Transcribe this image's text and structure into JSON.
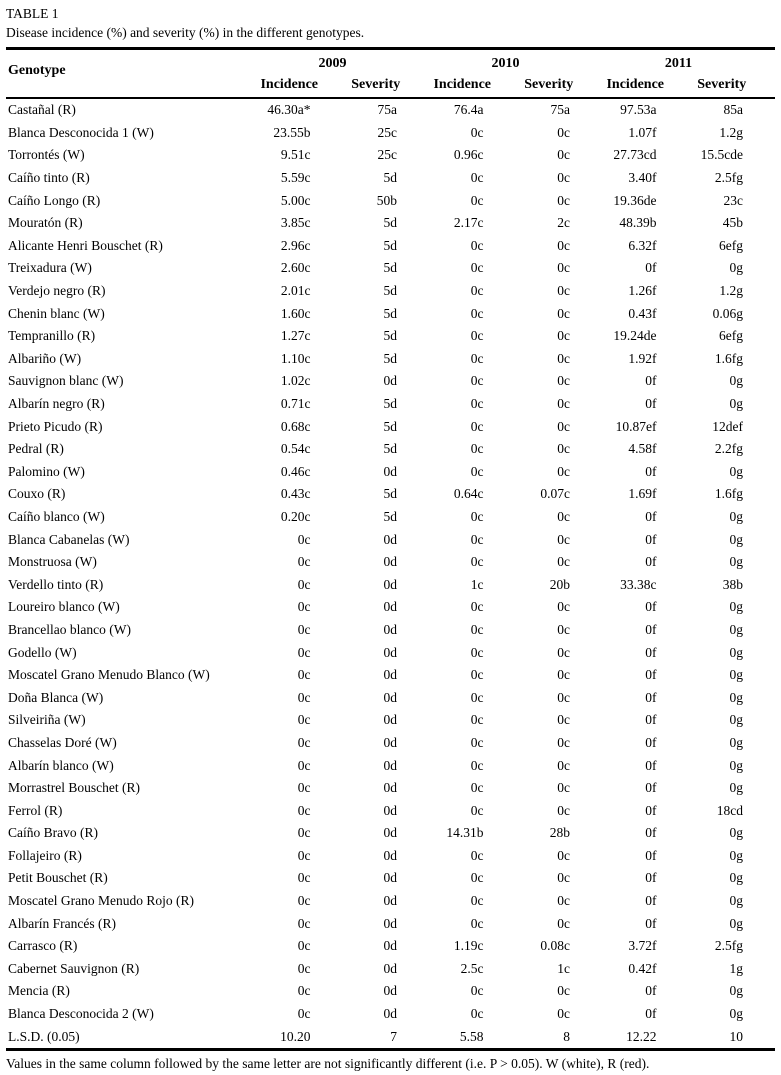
{
  "page": {
    "label": "TABLE 1",
    "title": "Disease incidence (%) and severity (%) in the different genotypes.",
    "footnote": "Values in the same column followed by the same letter are not significantly different (i.e. P > 0.05). W (white), R (red)."
  },
  "table": {
    "genotype_header": "Genotype",
    "year_groups": [
      "2009",
      "2010",
      "2011"
    ],
    "sub_headers": [
      "Incidence",
      "Severity"
    ],
    "rows": [
      {
        "genotype": "Castañal (R)",
        "values": [
          "46.30a*",
          "75a",
          "76.4a",
          "75a",
          "97.53a",
          "85a"
        ]
      },
      {
        "genotype": "Blanca Desconocida 1 (W)",
        "values": [
          "23.55b",
          "25c",
          "0c",
          "0c",
          "1.07f",
          "1.2g"
        ]
      },
      {
        "genotype": "Torrontés (W)",
        "values": [
          "9.51c",
          "25c",
          "0.96c",
          "0c",
          "27.73cd",
          "15.5cde"
        ]
      },
      {
        "genotype": "Caíño tinto (R)",
        "values": [
          "5.59c",
          "5d",
          "0c",
          "0c",
          "3.40f",
          "2.5fg"
        ]
      },
      {
        "genotype": "Caíño Longo (R)",
        "values": [
          "5.00c",
          "50b",
          "0c",
          "0c",
          "19.36de",
          "23c"
        ]
      },
      {
        "genotype": "Mouratón (R)",
        "values": [
          "3.85c",
          "5d",
          "2.17c",
          "2c",
          "48.39b",
          "45b"
        ]
      },
      {
        "genotype": "Alicante Henri Bouschet (R)",
        "values": [
          "2.96c",
          "5d",
          "0c",
          "0c",
          "6.32f",
          "6efg"
        ]
      },
      {
        "genotype": "Treixadura (W)",
        "values": [
          "2.60c",
          "5d",
          "0c",
          "0c",
          "0f",
          "0g"
        ]
      },
      {
        "genotype": "Verdejo negro (R)",
        "values": [
          "2.01c",
          "5d",
          "0c",
          "0c",
          "1.26f",
          "1.2g"
        ]
      },
      {
        "genotype": "Chenin blanc (W)",
        "values": [
          "1.60c",
          "5d",
          "0c",
          "0c",
          "0.43f",
          "0.06g"
        ]
      },
      {
        "genotype": "Tempranillo (R)",
        "values": [
          "1.27c",
          "5d",
          "0c",
          "0c",
          "19.24de",
          "6efg"
        ]
      },
      {
        "genotype": "Albariño (W)",
        "values": [
          "1.10c",
          "5d",
          "0c",
          "0c",
          "1.92f",
          "1.6fg"
        ]
      },
      {
        "genotype": "Sauvignon blanc (W)",
        "values": [
          "1.02c",
          "0d",
          "0c",
          "0c",
          "0f",
          "0g"
        ]
      },
      {
        "genotype": "Albarín negro (R)",
        "values": [
          "0.71c",
          "5d",
          "0c",
          "0c",
          "0f",
          "0g"
        ]
      },
      {
        "genotype": "Prieto Picudo (R)",
        "values": [
          "0.68c",
          "5d",
          "0c",
          "0c",
          "10.87ef",
          "12def"
        ]
      },
      {
        "genotype": "Pedral (R)",
        "values": [
          "0.54c",
          "5d",
          "0c",
          "0c",
          "4.58f",
          "2.2fg"
        ]
      },
      {
        "genotype": "Palomino (W)",
        "values": [
          "0.46c",
          "0d",
          "0c",
          "0c",
          "0f",
          "0g"
        ]
      },
      {
        "genotype": "Couxo (R)",
        "values": [
          "0.43c",
          "5d",
          "0.64c",
          "0.07c",
          "1.69f",
          "1.6fg"
        ]
      },
      {
        "genotype": "Caíño blanco (W)",
        "values": [
          "0.20c",
          "5d",
          "0c",
          "0c",
          "0f",
          "0g"
        ]
      },
      {
        "genotype": "Blanca Cabanelas (W)",
        "values": [
          "0c",
          "0d",
          "0c",
          "0c",
          "0f",
          "0g"
        ]
      },
      {
        "genotype": "Monstruosa (W)",
        "values": [
          "0c",
          "0d",
          "0c",
          "0c",
          "0f",
          "0g"
        ]
      },
      {
        "genotype": "Verdello tinto (R)",
        "values": [
          "0c",
          "0d",
          "1c",
          "20b",
          "33.38c",
          "38b"
        ]
      },
      {
        "genotype": "Loureiro blanco (W)",
        "values": [
          "0c",
          "0d",
          "0c",
          "0c",
          "0f",
          "0g"
        ]
      },
      {
        "genotype": "Brancellao blanco (W)",
        "values": [
          "0c",
          "0d",
          "0c",
          "0c",
          "0f",
          "0g"
        ]
      },
      {
        "genotype": "Godello (W)",
        "values": [
          "0c",
          "0d",
          "0c",
          "0c",
          "0f",
          "0g"
        ]
      },
      {
        "genotype": "Moscatel Grano Menudo Blanco (W)",
        "values": [
          "0c",
          "0d",
          "0c",
          "0c",
          "0f",
          "0g"
        ]
      },
      {
        "genotype": "Doña Blanca (W)",
        "values": [
          "0c",
          "0d",
          "0c",
          "0c",
          "0f",
          "0g"
        ]
      },
      {
        "genotype": "Silveiriña (W)",
        "values": [
          "0c",
          "0d",
          "0c",
          "0c",
          "0f",
          "0g"
        ]
      },
      {
        "genotype": "Chasselas Doré (W)",
        "values": [
          "0c",
          "0d",
          "0c",
          "0c",
          "0f",
          "0g"
        ]
      },
      {
        "genotype": "Albarín blanco (W)",
        "values": [
          "0c",
          "0d",
          "0c",
          "0c",
          "0f",
          "0g"
        ]
      },
      {
        "genotype": "Morrastrel Bouschet (R)",
        "values": [
          "0c",
          "0d",
          "0c",
          "0c",
          "0f",
          "0g"
        ]
      },
      {
        "genotype": "Ferrol (R)",
        "values": [
          "0c",
          "0d",
          "0c",
          "0c",
          "0f",
          "18cd"
        ]
      },
      {
        "genotype": "Caíño Bravo (R)",
        "values": [
          "0c",
          "0d",
          "14.31b",
          "28b",
          "0f",
          "0g"
        ]
      },
      {
        "genotype": "Follajeiro (R)",
        "values": [
          "0c",
          "0d",
          "0c",
          "0c",
          "0f",
          "0g"
        ]
      },
      {
        "genotype": "Petit Bouschet (R)",
        "values": [
          "0c",
          "0d",
          "0c",
          "0c",
          "0f",
          "0g"
        ]
      },
      {
        "genotype": "Moscatel Grano Menudo Rojo (R)",
        "values": [
          "0c",
          "0d",
          "0c",
          "0c",
          "0f",
          "0g"
        ]
      },
      {
        "genotype": "Albarín Francés (R)",
        "values": [
          "0c",
          "0d",
          "0c",
          "0c",
          "0f",
          "0g"
        ]
      },
      {
        "genotype": "Carrasco (R)",
        "values": [
          "0c",
          "0d",
          "1.19c",
          "0.08c",
          "3.72f",
          "2.5fg"
        ]
      },
      {
        "genotype": "Cabernet Sauvignon (R)",
        "values": [
          "0c",
          "0d",
          "2.5c",
          "1c",
          "0.42f",
          "1g"
        ]
      },
      {
        "genotype": "Mencia (R)",
        "values": [
          "0c",
          "0d",
          "0c",
          "0c",
          "0f",
          "0g"
        ]
      },
      {
        "genotype": "Blanca Desconocida 2 (W)",
        "values": [
          "0c",
          "0d",
          "0c",
          "0c",
          "0f",
          "0g"
        ]
      },
      {
        "genotype": "L.S.D. (0.05)",
        "values": [
          "10.20",
          "7",
          "5.58",
          "8",
          "12.22",
          "10"
        ]
      }
    ]
  }
}
